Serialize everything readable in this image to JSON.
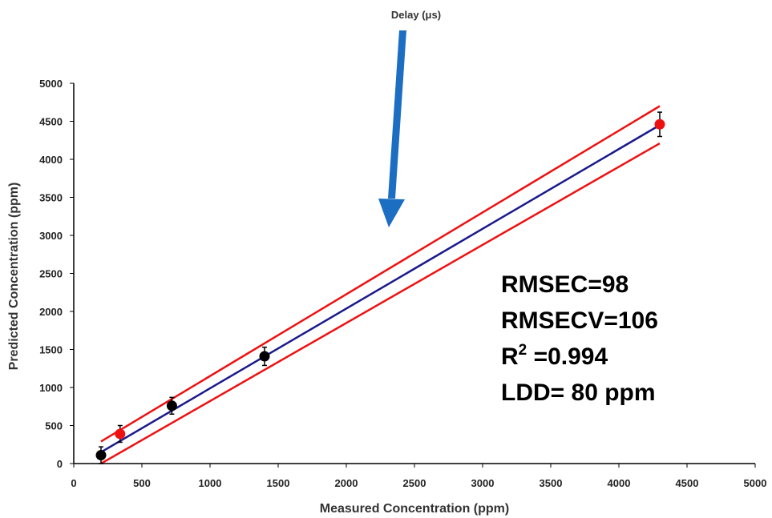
{
  "chart_data": {
    "type": "scatter",
    "title": "",
    "top_label": "Delay (μs)",
    "xlabel": "Measured Concentration (ppm)",
    "ylabel": "Predicted Concentration (ppm)",
    "xlim": [
      0,
      5000
    ],
    "ylim": [
      0,
      5000
    ],
    "xticks": [
      0,
      500,
      1000,
      1500,
      2000,
      2500,
      3000,
      3500,
      4000,
      4500,
      5000
    ],
    "yticks": [
      0,
      500,
      1000,
      1500,
      2000,
      2500,
      3000,
      3500,
      4000,
      4500,
      5000
    ],
    "grid": false,
    "series": [
      {
        "color": "#000000",
        "points": [
          {
            "x": 200,
            "y": 110,
            "err": 110
          },
          {
            "x": 720,
            "y": 760,
            "err": 110
          },
          {
            "x": 1400,
            "y": 1410,
            "err": 120
          }
        ]
      },
      {
        "color": "#ee1111",
        "points": [
          {
            "x": 340,
            "y": 390,
            "err": 110
          },
          {
            "x": 4300,
            "y": 4460,
            "err": 160
          }
        ]
      }
    ],
    "lines": [
      {
        "color": "#1a1a8c",
        "x": [
          200,
          4300
        ],
        "y": [
          150,
          4450
        ]
      },
      {
        "color": "#ee1111",
        "x": [
          200,
          4300
        ],
        "y": [
          290,
          4700
        ]
      },
      {
        "color": "#ee1111",
        "x": [
          200,
          4300
        ],
        "y": [
          0,
          4210
        ]
      }
    ],
    "arrow_color": "#1b6ec2",
    "annotations": {
      "rmsec": "RMSEC=98",
      "rmsecv": "RMSECV=106",
      "r2_base": "R",
      "r2_sup": "2",
      "r2_value": " =0.994",
      "ldd": "LDD= 80 ppm"
    }
  }
}
